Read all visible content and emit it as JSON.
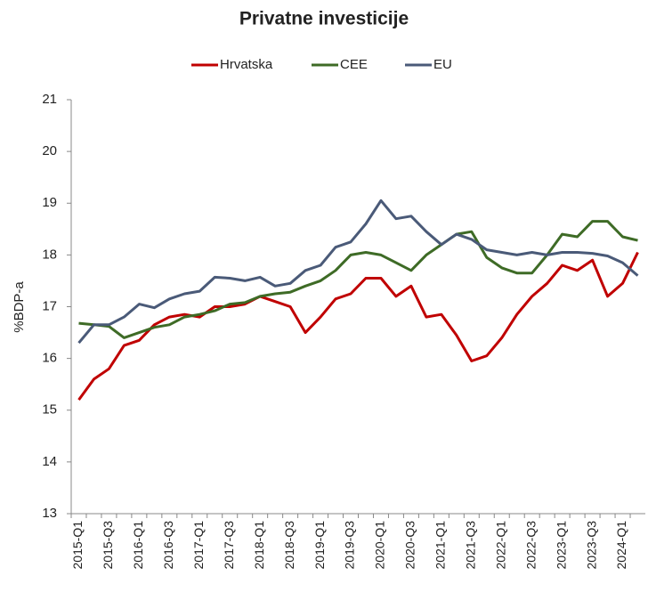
{
  "chart_data": {
    "type": "line",
    "title": "Privatne investicije",
    "y_label": "%BDP-a",
    "categories": [
      "2015-Q1",
      null,
      "2015-Q3",
      null,
      "2016-Q1",
      null,
      "2016-Q3",
      null,
      "2017-Q1",
      null,
      "2017-Q3",
      null,
      "2018-Q1",
      null,
      "2018-Q3",
      null,
      "2019-Q1",
      null,
      "2019-Q3",
      null,
      "2020-Q1",
      null,
      "2020-Q3",
      null,
      "2021-Q1",
      null,
      "2021-Q3",
      null,
      "2022-Q1",
      null,
      "2022-Q3",
      null,
      "2023-Q1",
      null,
      "2023-Q3",
      null,
      "2024-Q1",
      null
    ],
    "series": [
      {
        "name": "Hrvatska",
        "color": "#c00000",
        "values": [
          15.2,
          15.6,
          15.8,
          16.25,
          16.35,
          16.65,
          16.8,
          16.85,
          16.8,
          17.0,
          17.0,
          17.05,
          17.2,
          17.1,
          17.0,
          16.5,
          16.8,
          17.15,
          17.25,
          17.55,
          17.55,
          17.2,
          17.4,
          16.8,
          16.85,
          16.45,
          15.95,
          16.05,
          16.4,
          16.85,
          17.2,
          17.45,
          17.8,
          17.7,
          17.9,
          17.2,
          17.45,
          18.05
        ]
      },
      {
        "name": "CEE",
        "color": "#3e6b26",
        "values": [
          16.68,
          16.65,
          16.62,
          16.4,
          16.5,
          16.6,
          16.65,
          16.8,
          16.85,
          16.92,
          17.05,
          17.08,
          17.2,
          17.25,
          17.28,
          17.4,
          17.5,
          17.7,
          18.0,
          18.05,
          18.0,
          17.85,
          17.7,
          18.0,
          18.2,
          18.4,
          18.45,
          17.95,
          17.75,
          17.65,
          17.65,
          18.0,
          18.4,
          18.35,
          18.65,
          18.65,
          18.35,
          18.28
        ]
      },
      {
        "name": "EU",
        "color": "#4a5a78",
        "values": [
          16.3,
          16.65,
          16.65,
          16.8,
          17.05,
          16.98,
          17.15,
          17.25,
          17.3,
          17.57,
          17.55,
          17.5,
          17.57,
          17.4,
          17.45,
          17.7,
          17.8,
          18.15,
          18.25,
          18.6,
          19.05,
          18.7,
          18.75,
          18.45,
          18.2,
          18.4,
          18.3,
          18.1,
          18.05,
          18.0,
          18.05,
          18.0,
          18.05,
          18.05,
          18.03,
          17.98,
          17.85,
          17.6
        ]
      }
    ],
    "ylim": [
      13,
      21
    ],
    "yticks": [
      13,
      14,
      15,
      16,
      17,
      18,
      19,
      20,
      21
    ],
    "legend": "top"
  }
}
